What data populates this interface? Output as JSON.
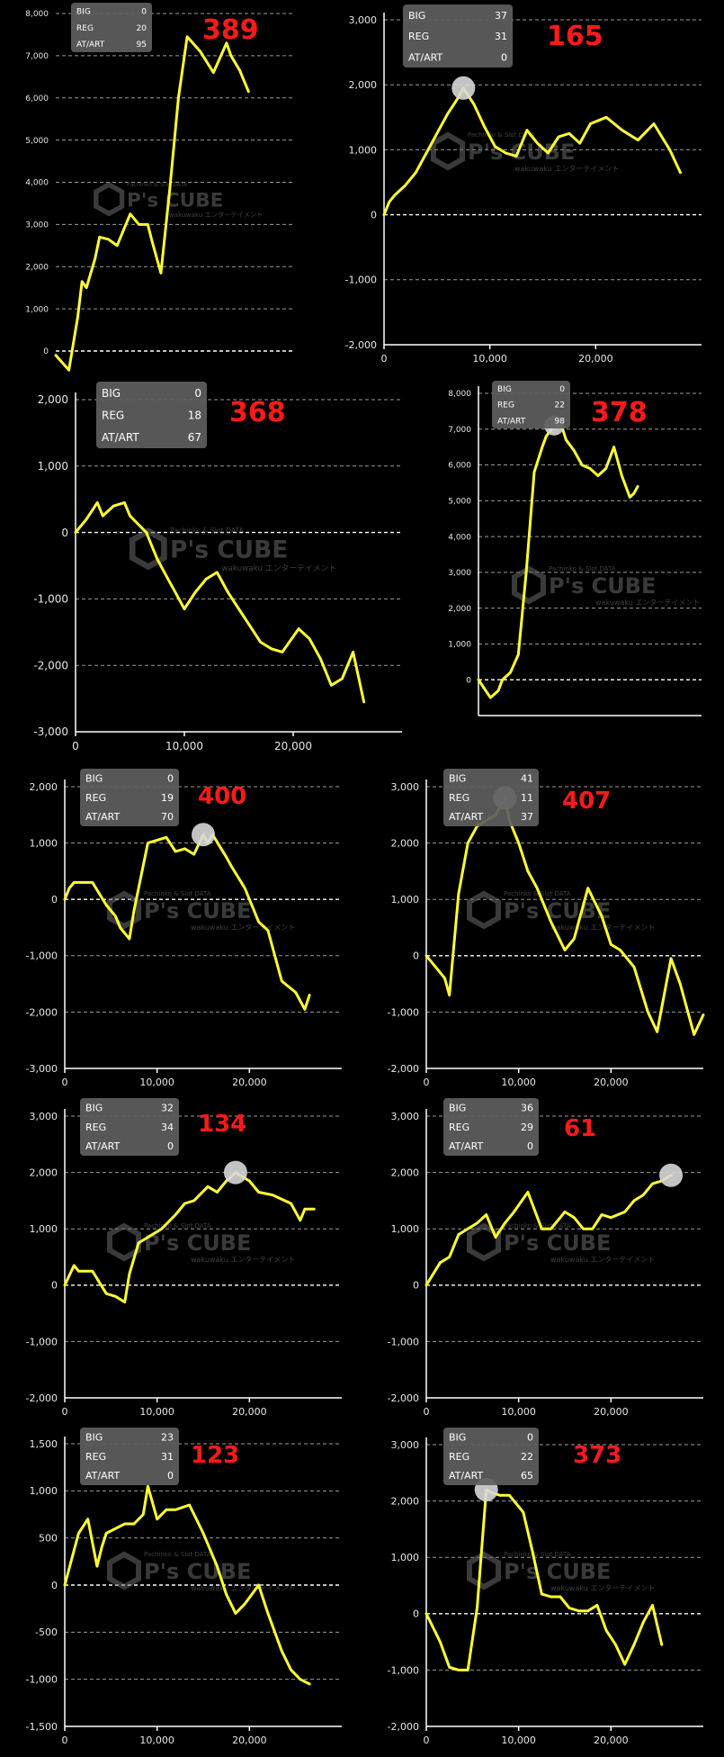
{
  "watermark": {
    "brand": "P's CUBE",
    "tagline": "Pachinko & Slot DATA",
    "sub": "wakuwaku エンターテイメント"
  },
  "box_labels": [
    "BIG",
    "REG",
    "AT/ART"
  ],
  "chart_data": [
    {
      "type": "line",
      "count_label": "389",
      "stats": {
        "big": "0",
        "reg": "20",
        "at_art": "95"
      },
      "ylim": [
        0,
        8000
      ],
      "yticks": [
        0,
        1000,
        2000,
        3000,
        4000,
        5000,
        6000,
        7000,
        8000
      ],
      "ytick_labels": [
        "0",
        "1,000",
        "2,000",
        "3,000",
        "4,000",
        "5,000",
        "6,000",
        "7,000",
        "8,000"
      ],
      "xlim": [
        0,
        27000
      ],
      "xticks": [],
      "xtick_labels": [],
      "highlight": false,
      "x": [
        0,
        1500,
        2500,
        3000,
        3500,
        4500,
        5000,
        6000,
        7000,
        7500,
        8500,
        9500,
        10500,
        11000,
        12000,
        13000,
        14000,
        15000,
        16500,
        18000,
        19500,
        20000,
        21000,
        22000
      ],
      "y": [
        -100,
        -450,
        800,
        1650,
        1500,
        2200,
        2700,
        2650,
        2500,
        2750,
        3250,
        3000,
        3000,
        2600,
        1850,
        3800,
        6000,
        7450,
        7100,
        6600,
        7300,
        7000,
        6650,
        6150
      ]
    },
    {
      "type": "line",
      "count_label": "165",
      "stats": {
        "big": "37",
        "reg": "31",
        "at_art": "0"
      },
      "ylim": [
        -2000,
        3000
      ],
      "yticks": [
        -2000,
        -1000,
        0,
        1000,
        2000,
        3000
      ],
      "ytick_labels": [
        "-2,000",
        "-1,000",
        "0",
        "1,000",
        "2,000",
        "3,000"
      ],
      "xlim": [
        0,
        30000
      ],
      "xticks": [
        0,
        10000,
        20000
      ],
      "xtick_labels": [
        "0",
        "10,000",
        "20,000"
      ],
      "highlight": true,
      "x": [
        0,
        500,
        1000,
        2000,
        3000,
        4000,
        5000,
        6000,
        7000,
        7500,
        8500,
        9500,
        10500,
        11500,
        12500,
        13500,
        14500,
        15500,
        16500,
        17500,
        18500,
        19500,
        21000,
        22500,
        24000,
        25500,
        27000,
        28000
      ],
      "y": [
        0,
        200,
        300,
        450,
        650,
        950,
        1250,
        1550,
        1800,
        1950,
        1700,
        1350,
        1050,
        950,
        900,
        1300,
        1100,
        950,
        1200,
        1250,
        1100,
        1400,
        1500,
        1300,
        1150,
        1400,
        1000,
        650
      ]
    },
    {
      "type": "line",
      "count_label": "368",
      "stats": {
        "big": "0",
        "reg": "18",
        "at_art": "67"
      },
      "ylim": [
        -3000,
        2000
      ],
      "yticks": [
        -3000,
        -2000,
        -1000,
        0,
        1000,
        2000
      ],
      "ytick_labels": [
        "-3,000",
        "-2,000",
        "-1,000",
        "0",
        "1,000",
        "2,000"
      ],
      "xlim": [
        0,
        30000
      ],
      "xticks": [
        0,
        10000,
        20000
      ],
      "xtick_labels": [
        "0",
        "10,000",
        "20,000"
      ],
      "highlight": false,
      "x": [
        0,
        1000,
        2000,
        2500,
        3500,
        4500,
        5000,
        6500,
        7500,
        8500,
        9000,
        10000,
        11000,
        12000,
        13000,
        14000,
        15000,
        16000,
        17000,
        18000,
        19000,
        20500,
        21500,
        22500,
        23500,
        24500,
        25500,
        26500
      ],
      "y": [
        0,
        200,
        450,
        250,
        400,
        450,
        250,
        0,
        -400,
        -700,
        -850,
        -1150,
        -900,
        -700,
        -600,
        -900,
        -1150,
        -1400,
        -1650,
        -1750,
        -1800,
        -1450,
        -1600,
        -1900,
        -2300,
        -2200,
        -1800,
        -2550
      ]
    },
    {
      "type": "line",
      "count_label": "378",
      "stats": {
        "big": "0",
        "reg": "22",
        "at_art": "98"
      },
      "ylim": [
        -1000,
        8000
      ],
      "yticks": [
        0,
        1000,
        2000,
        3000,
        4000,
        5000,
        6000,
        7000,
        8000
      ],
      "ytick_labels": [
        "0",
        "1,000",
        "2,000",
        "3,000",
        "4,000",
        "5,000",
        "6,000",
        "7,000",
        "8,000"
      ],
      "xlim": [
        0,
        28000
      ],
      "xticks": [],
      "xtick_labels": [],
      "highlight": true,
      "x": [
        0,
        1500,
        2500,
        3000,
        4000,
        5000,
        6000,
        7000,
        8000,
        8500,
        9500,
        10500,
        11000,
        12000,
        13000,
        14000,
        15000,
        16000,
        17000,
        18000,
        19000,
        19500,
        20000
      ],
      "y": [
        0,
        -500,
        -300,
        0,
        200,
        700,
        3000,
        5800,
        6500,
        6800,
        7100,
        7050,
        6700,
        6400,
        6000,
        5900,
        5700,
        5900,
        6500,
        5700,
        5100,
        5200,
        5400
      ]
    },
    {
      "type": "line",
      "count_label": "400",
      "stats": {
        "big": "0",
        "reg": "19",
        "at_art": "70"
      },
      "ylim": [
        -3000,
        2000
      ],
      "yticks": [
        -3000,
        -2000,
        -1000,
        0,
        1000,
        2000
      ],
      "ytick_labels": [
        "-3,000",
        "-2,000",
        "-1,000",
        "0",
        "1,000",
        "2,000"
      ],
      "xlim": [
        0,
        30000
      ],
      "xticks": [
        0,
        10000,
        20000
      ],
      "xtick_labels": [
        "0",
        "10,000",
        "20,000"
      ],
      "highlight": true,
      "x": [
        0,
        500,
        1000,
        3000,
        4500,
        5500,
        6000,
        6500,
        7000,
        7500,
        9000,
        11000,
        12000,
        13000,
        14000,
        15000,
        15500,
        16000,
        17500,
        18000,
        19500,
        20500,
        21000,
        22000,
        23500,
        25000,
        26000,
        26500
      ],
      "y": [
        0,
        200,
        300,
        300,
        -100,
        -300,
        -500,
        -600,
        -700,
        -200,
        1000,
        1100,
        850,
        900,
        800,
        1150,
        1000,
        1150,
        750,
        600,
        200,
        -200,
        -400,
        -550,
        -1450,
        -1650,
        -1950,
        -1700
      ]
    },
    {
      "type": "line",
      "count_label": "407",
      "stats": {
        "big": "41",
        "reg": "11",
        "at_art": "37"
      },
      "ylim": [
        -2000,
        3000
      ],
      "yticks": [
        -2000,
        -1000,
        0,
        1000,
        2000,
        3000
      ],
      "ytick_labels": [
        "-2,000",
        "-1,000",
        "0",
        "1,000",
        "2,000",
        "3,000"
      ],
      "xlim": [
        0,
        30000
      ],
      "xticks": [
        0,
        10000,
        20000
      ],
      "xtick_labels": [
        "0",
        "10,000",
        "20,000"
      ],
      "highlight": true,
      "x": [
        0,
        1000,
        2000,
        2500,
        3500,
        4500,
        5500,
        6500,
        7500,
        8500,
        9000,
        10000,
        11000,
        12000,
        13500,
        15000,
        16000,
        17500,
        19000,
        20000,
        21000,
        22500,
        24000,
        25000,
        26500,
        27500,
        29000,
        30000
      ],
      "y": [
        0,
        -200,
        -400,
        -700,
        1100,
        2000,
        2300,
        2400,
        2500,
        2800,
        2400,
        2000,
        1500,
        1200,
        600,
        100,
        300,
        1200,
        700,
        200,
        100,
        -200,
        -1000,
        -1350,
        -50,
        -500,
        -1400,
        -1050
      ]
    },
    {
      "type": "line",
      "count_label": "134",
      "stats": {
        "big": "32",
        "reg": "34",
        "at_art": "0"
      },
      "ylim": [
        -2000,
        3000
      ],
      "yticks": [
        -2000,
        -1000,
        0,
        1000,
        2000,
        3000
      ],
      "ytick_labels": [
        "-2,000",
        "-1,000",
        "0",
        "1,000",
        "2,000",
        "3,000"
      ],
      "xlim": [
        0,
        30000
      ],
      "xticks": [
        0,
        10000,
        20000
      ],
      "xtick_labels": [
        "0",
        "10,000",
        "20,000"
      ],
      "highlight": true,
      "x": [
        0,
        1000,
        1500,
        3000,
        4500,
        5500,
        6500,
        7000,
        8000,
        9000,
        10500,
        12000,
        13000,
        14000,
        15500,
        16500,
        17500,
        18500,
        20000,
        21000,
        22500,
        24500,
        25500,
        26000,
        27000
      ],
      "y": [
        0,
        350,
        250,
        250,
        -150,
        -200,
        -300,
        200,
        750,
        850,
        1000,
        1250,
        1450,
        1500,
        1750,
        1650,
        1850,
        2000,
        1850,
        1650,
        1600,
        1450,
        1150,
        1350,
        1350
      ]
    },
    {
      "type": "line",
      "count_label": "61",
      "stats": {
        "big": "36",
        "reg": "29",
        "at_art": "0"
      },
      "ylim": [
        -2000,
        3000
      ],
      "yticks": [
        -2000,
        -1000,
        0,
        1000,
        2000,
        3000
      ],
      "ytick_labels": [
        "-2,000",
        "-1,000",
        "0",
        "1,000",
        "2,000",
        "3,000"
      ],
      "xlim": [
        0,
        30000
      ],
      "xticks": [
        0,
        10000,
        20000
      ],
      "xtick_labels": [
        "0",
        "10,000",
        "20,000"
      ],
      "highlight": true,
      "x": [
        0,
        1500,
        2500,
        3500,
        4500,
        5500,
        6500,
        7500,
        8500,
        9500,
        11000,
        12500,
        13500,
        15000,
        16000,
        17000,
        18000,
        19000,
        20000,
        21500,
        22500,
        23500,
        24500,
        25500,
        26500
      ],
      "y": [
        0,
        400,
        500,
        900,
        1000,
        1100,
        1250,
        850,
        1100,
        1300,
        1650,
        1000,
        1000,
        1300,
        1200,
        1000,
        1000,
        1250,
        1200,
        1300,
        1500,
        1600,
        1800,
        1850,
        1950
      ]
    },
    {
      "type": "line",
      "count_label": "123",
      "stats": {
        "big": "23",
        "reg": "31",
        "at_art": "0"
      },
      "ylim": [
        -1500,
        1500
      ],
      "yticks": [
        -1500,
        -1000,
        -500,
        0,
        500,
        1000,
        1500
      ],
      "ytick_labels": [
        "-1,500",
        "-1,000",
        "-500",
        "0",
        "500",
        "1,000",
        "1,500"
      ],
      "xlim": [
        0,
        30000
      ],
      "xticks": [
        0,
        10000,
        20000
      ],
      "xtick_labels": [
        "0",
        "10,000",
        "20,000"
      ],
      "highlight": false,
      "x": [
        0,
        1500,
        2500,
        3500,
        4000,
        4500,
        5500,
        6500,
        7500,
        8500,
        9000,
        10000,
        11000,
        12000,
        13500,
        15000,
        16500,
        17500,
        18500,
        19500,
        21000,
        22000,
        23500,
        24500,
        25500,
        26500
      ],
      "y": [
        0,
        550,
        700,
        200,
        400,
        550,
        600,
        650,
        650,
        750,
        1050,
        700,
        800,
        800,
        850,
        550,
        200,
        -100,
        -300,
        -200,
        0,
        -300,
        -700,
        -900,
        -1000,
        -1050
      ]
    },
    {
      "type": "line",
      "count_label": "373",
      "stats": {
        "big": "0",
        "reg": "22",
        "at_art": "65"
      },
      "ylim": [
        -2000,
        3000
      ],
      "yticks": [
        -2000,
        -1000,
        0,
        1000,
        2000,
        3000
      ],
      "ytick_labels": [
        "-2,000",
        "-1,000",
        "0",
        "1,000",
        "2,000",
        "3,000"
      ],
      "xlim": [
        0,
        30000
      ],
      "xticks": [
        0,
        10000,
        20000
      ],
      "xtick_labels": [
        "0",
        "10,000",
        "20,000"
      ],
      "highlight": true,
      "x": [
        0,
        1500,
        2500,
        3500,
        4500,
        5500,
        6500,
        7000,
        8000,
        9000,
        10500,
        11500,
        12500,
        13500,
        14500,
        15500,
        16500,
        17500,
        18500,
        19500,
        20500,
        21500,
        22500,
        23500,
        24500,
        25500
      ],
      "y": [
        0,
        -500,
        -950,
        -1000,
        -1000,
        100,
        2200,
        2150,
        2100,
        2100,
        1800,
        1100,
        350,
        300,
        300,
        100,
        50,
        50,
        150,
        -300,
        -550,
        -900,
        -550,
        -150,
        150,
        -550
      ]
    }
  ]
}
